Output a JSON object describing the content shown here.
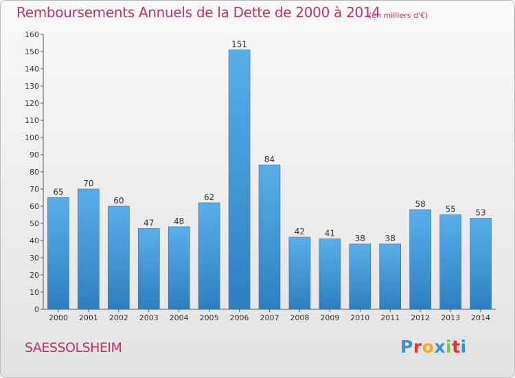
{
  "chart_data": {
    "type": "bar",
    "title": "Remboursements Annuels de la Dette de 2000 à 2014",
    "unit_note": "(en milliers d'€)",
    "categories": [
      "2000",
      "2001",
      "2002",
      "2003",
      "2004",
      "2005",
      "2006",
      "2007",
      "2008",
      "2009",
      "2010",
      "2011",
      "2012",
      "2013",
      "2014"
    ],
    "values": [
      65,
      70,
      60,
      47,
      48,
      62,
      151,
      84,
      42,
      41,
      38,
      38,
      58,
      55,
      53
    ],
    "ylim": [
      0,
      160
    ],
    "yticks": [
      0,
      10,
      20,
      30,
      40,
      50,
      60,
      70,
      80,
      90,
      100,
      110,
      120,
      130,
      140,
      150,
      160
    ],
    "grid": false,
    "bar_color": "#4a9edb"
  },
  "footer": {
    "commune": "SAESSOLSHEIM",
    "logo_text": "Proxiti"
  },
  "colors": {
    "accent": "#c2306a",
    "logo": [
      "#3b8ed4",
      "#e8322d",
      "#f5a623",
      "#3b8ed4",
      "#7cc242",
      "#e8322d",
      "#3b8ed4"
    ]
  }
}
